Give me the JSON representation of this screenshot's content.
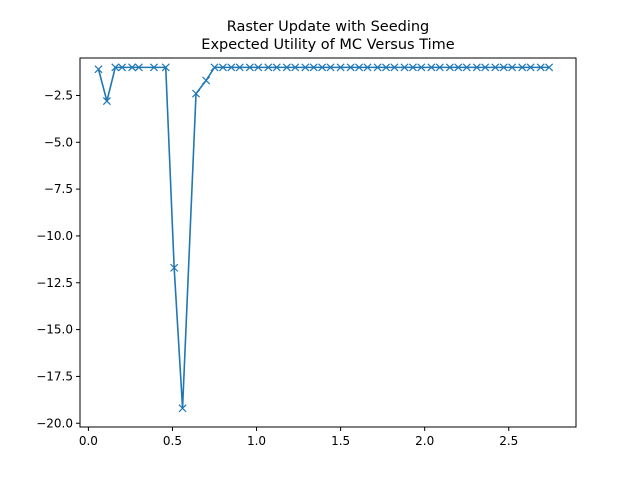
{
  "chart_data": {
    "type": "line",
    "title": "Raster Update with Seeding",
    "subtitle": "Expected Utility of MC Versus Time",
    "xlabel": "",
    "ylabel": "",
    "xlim": [
      -0.05,
      2.9
    ],
    "ylim": [
      -20.2,
      -0.5
    ],
    "xticks": [
      0.0,
      0.5,
      1.0,
      1.5,
      2.0,
      2.5
    ],
    "xtick_labels": [
      "0.0",
      "0.5",
      "1.0",
      "1.5",
      "2.0",
      "2.5"
    ],
    "yticks": [
      -2.5,
      -5.0,
      -7.5,
      -10.0,
      -12.5,
      -15.0,
      -17.5,
      -20.0
    ],
    "ytick_labels": [
      "−2.5",
      "−5.0",
      "−7.5",
      "−10.0",
      "−12.5",
      "−15.0",
      "−17.5",
      "−20.0"
    ],
    "marker": "x",
    "color": "#1f77b4",
    "grid": false,
    "series": [
      {
        "x": [
          0.06,
          0.11,
          0.16,
          0.2,
          0.26,
          0.3,
          0.39,
          0.46,
          0.51,
          0.56,
          0.64,
          0.7,
          0.75,
          0.8,
          0.85,
          0.9,
          0.96,
          1.01,
          1.07,
          1.12,
          1.18,
          1.23,
          1.29,
          1.34,
          1.39,
          1.44,
          1.5,
          1.56,
          1.61,
          1.66,
          1.72,
          1.77,
          1.82,
          1.88,
          1.93,
          1.98,
          2.04,
          2.09,
          2.15,
          2.2,
          2.25,
          2.31,
          2.36,
          2.42,
          2.47,
          2.52,
          2.58,
          2.63,
          2.69,
          2.74
        ],
        "y": [
          -1.1,
          -2.8,
          -1.0,
          -1.0,
          -1.0,
          -1.0,
          -1.0,
          -1.0,
          -11.7,
          -19.2,
          -2.4,
          -1.7,
          -1.0,
          -1.0,
          -1.0,
          -1.0,
          -1.0,
          -1.0,
          -1.0,
          -1.0,
          -1.0,
          -1.0,
          -1.0,
          -1.0,
          -1.0,
          -1.0,
          -1.0,
          -1.0,
          -1.0,
          -1.0,
          -1.0,
          -1.0,
          -1.0,
          -1.0,
          -1.0,
          -1.0,
          -1.0,
          -1.0,
          -1.0,
          -1.0,
          -1.0,
          -1.0,
          -1.0,
          -1.0,
          -1.0,
          -1.0,
          -1.0,
          -1.0,
          -1.0,
          -1.0
        ]
      }
    ]
  }
}
